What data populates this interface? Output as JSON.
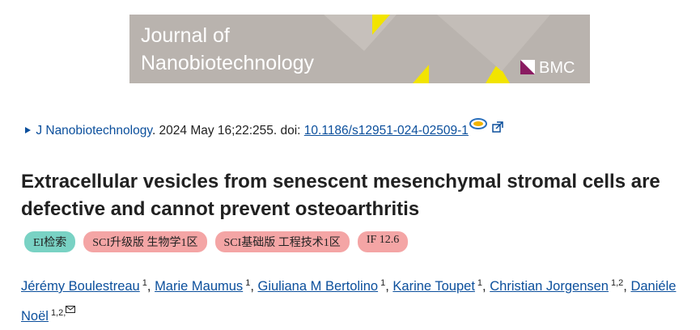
{
  "banner": {
    "line1": "Journal of",
    "line2": "Nanobiotechnology",
    "publisher": "BMC"
  },
  "citation": {
    "journal": "J Nanobiotechnology",
    "details": ". 2024 May 16;22:255. doi: ",
    "doi": "10.1186/s12951-024-02509-1"
  },
  "title": "Extracellular vesicles from senescent mesenchymal stromal cells are defective and cannot prevent osteoarthritis",
  "badges": [
    "EI检索",
    "SCI升级版 生物学1区",
    "SCI基础版 工程技术1区",
    "IF 12.6"
  ],
  "separator": ",",
  "authors": [
    {
      "name": "Jérémy Boulestreau",
      "affiliations": "1"
    },
    {
      "name": "Marie Maumus",
      "affiliations": "1"
    },
    {
      "name": "Giuliana M Bertolino",
      "affiliations": "1"
    },
    {
      "name": "Karine Toupet",
      "affiliations": "1"
    },
    {
      "name": "Christian Jorgensen",
      "affiliations": "1,2"
    },
    {
      "name": "Daniéle Noël",
      "affiliations": "1,2,"
    }
  ]
}
